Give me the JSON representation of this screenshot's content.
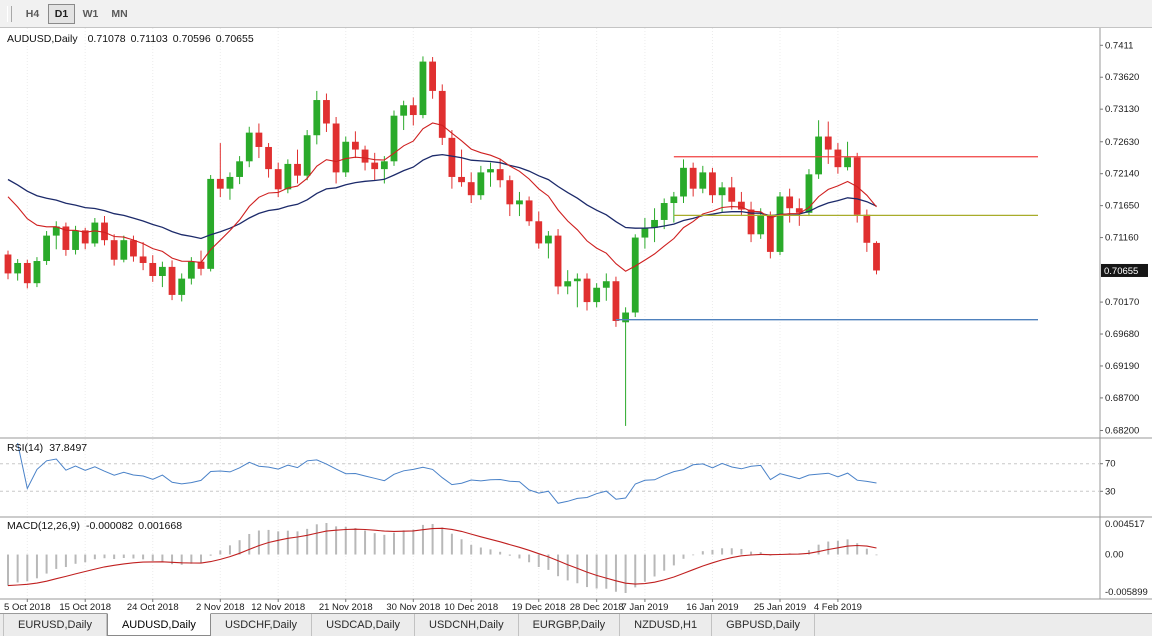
{
  "toolbar": {
    "timeframes": [
      {
        "label": "H4",
        "active": false
      },
      {
        "label": "D1",
        "active": true
      },
      {
        "label": "W1",
        "active": false
      },
      {
        "label": "MN",
        "active": false
      }
    ]
  },
  "main_header": {
    "symbol_period": "AUDUSD,Daily",
    "open": "0.71078",
    "high": "0.71103",
    "low": "0.70596",
    "close": "0.70655"
  },
  "rsi_header": {
    "label": "RSI(14)",
    "value": "37.8497"
  },
  "macd_header": {
    "label": "MACD(12,26,9)",
    "value": "-0.000082",
    "signal_value": "0.001668"
  },
  "chart_data": {
    "type": "candlestick",
    "symbol": "AUDUSD",
    "timeframe": "Daily",
    "colors": {
      "up": "#2aaa2a",
      "down": "#e03030",
      "ma_fast": "#cf2020",
      "ma_slow": "#1c2a6a",
      "rsi": "#4a82c8",
      "macd_signal": "#c02020",
      "macd_hist": "#b8b8b8"
    },
    "price_axis": {
      "labels": [
        "0.7411",
        "0.73620",
        "0.73130",
        "0.72630",
        "0.72140",
        "0.71650",
        "0.71160",
        "0.70170",
        "0.69680",
        "0.69190",
        "0.68700",
        "0.68200"
      ],
      "view_max": 0.7436,
      "view_min": 0.681
    },
    "current_price": "0.70655",
    "time_axis": [
      {
        "label": "5 Oct 2018",
        "i": 2
      },
      {
        "label": "15 Oct 2018",
        "i": 8
      },
      {
        "label": "24 Oct 2018",
        "i": 15
      },
      {
        "label": "2 Nov 2018",
        "i": 22
      },
      {
        "label": "12 Nov 2018",
        "i": 28
      },
      {
        "label": "21 Nov 2018",
        "i": 35
      },
      {
        "label": "30 Nov 2018",
        "i": 42
      },
      {
        "label": "10 Dec 2018",
        "i": 48
      },
      {
        "label": "19 Dec 2018",
        "i": 55
      },
      {
        "label": "28 Dec 2018",
        "i": 61
      },
      {
        "label": "7 Jan 2019",
        "i": 66
      },
      {
        "label": "16 Jan 2019",
        "i": 73
      },
      {
        "label": "25 Jan 2019",
        "i": 80
      },
      {
        "label": "4 Feb 2019",
        "i": 86
      }
    ],
    "ohlc_order": [
      "open",
      "high",
      "low",
      "close"
    ],
    "candles": [
      [
        0.709,
        0.7096,
        0.7052,
        0.7061
      ],
      [
        0.7061,
        0.7083,
        0.705,
        0.7077
      ],
      [
        0.7077,
        0.7082,
        0.7038,
        0.7046
      ],
      [
        0.7046,
        0.7086,
        0.704,
        0.708
      ],
      [
        0.708,
        0.7126,
        0.7074,
        0.7119
      ],
      [
        0.7119,
        0.7141,
        0.7098,
        0.7133
      ],
      [
        0.7133,
        0.7139,
        0.7088,
        0.7097
      ],
      [
        0.7097,
        0.7134,
        0.709,
        0.7127
      ],
      [
        0.7127,
        0.7131,
        0.7098,
        0.7107
      ],
      [
        0.7107,
        0.7146,
        0.7102,
        0.7139
      ],
      [
        0.7139,
        0.7149,
        0.7104,
        0.7112
      ],
      [
        0.7112,
        0.7121,
        0.7073,
        0.7082
      ],
      [
        0.7082,
        0.7119,
        0.7078,
        0.7112
      ],
      [
        0.7112,
        0.7119,
        0.7079,
        0.7087
      ],
      [
        0.7087,
        0.7109,
        0.7066,
        0.7077
      ],
      [
        0.7077,
        0.7089,
        0.7048,
        0.7057
      ],
      [
        0.7057,
        0.7079,
        0.704,
        0.7071
      ],
      [
        0.7071,
        0.7081,
        0.702,
        0.7028
      ],
      [
        0.7028,
        0.7061,
        0.7018,
        0.7053
      ],
      [
        0.7053,
        0.7086,
        0.7044,
        0.7079
      ],
      [
        0.7079,
        0.7096,
        0.7058,
        0.7068
      ],
      [
        0.7068,
        0.7212,
        0.7064,
        0.7206
      ],
      [
        0.7206,
        0.7261,
        0.7178,
        0.7191
      ],
      [
        0.7191,
        0.7216,
        0.7174,
        0.7209
      ],
      [
        0.7209,
        0.7241,
        0.7198,
        0.7233
      ],
      [
        0.7233,
        0.7286,
        0.7224,
        0.7277
      ],
      [
        0.7277,
        0.7291,
        0.7238,
        0.7255
      ],
      [
        0.7255,
        0.7261,
        0.7208,
        0.7221
      ],
      [
        0.7221,
        0.7231,
        0.7178,
        0.719
      ],
      [
        0.719,
        0.7236,
        0.7184,
        0.7229
      ],
      [
        0.7229,
        0.7251,
        0.7199,
        0.7211
      ],
      [
        0.7211,
        0.7281,
        0.7204,
        0.7273
      ],
      [
        0.7273,
        0.7341,
        0.7259,
        0.7327
      ],
      [
        0.7327,
        0.7337,
        0.7278,
        0.7291
      ],
      [
        0.7291,
        0.7301,
        0.7199,
        0.7216
      ],
      [
        0.7216,
        0.7271,
        0.7209,
        0.7263
      ],
      [
        0.7263,
        0.7279,
        0.7238,
        0.7251
      ],
      [
        0.7251,
        0.7257,
        0.7219,
        0.7231
      ],
      [
        0.7231,
        0.7246,
        0.7204,
        0.7221
      ],
      [
        0.7221,
        0.7241,
        0.7199,
        0.7233
      ],
      [
        0.7233,
        0.7311,
        0.7226,
        0.7303
      ],
      [
        0.7303,
        0.7326,
        0.7281,
        0.7319
      ],
      [
        0.7319,
        0.7331,
        0.7288,
        0.7304
      ],
      [
        0.7304,
        0.7394,
        0.7299,
        0.7386
      ],
      [
        0.7386,
        0.7393,
        0.7329,
        0.7341
      ],
      [
        0.7341,
        0.7351,
        0.7258,
        0.7269
      ],
      [
        0.7269,
        0.7281,
        0.7191,
        0.7209
      ],
      [
        0.7209,
        0.7251,
        0.7194,
        0.7201
      ],
      [
        0.7201,
        0.7216,
        0.7169,
        0.7181
      ],
      [
        0.7181,
        0.7226,
        0.7174,
        0.7216
      ],
      [
        0.7216,
        0.7231,
        0.7194,
        0.7221
      ],
      [
        0.7221,
        0.7236,
        0.7193,
        0.7204
      ],
      [
        0.7204,
        0.7211,
        0.7149,
        0.7167
      ],
      [
        0.7167,
        0.7186,
        0.7149,
        0.7173
      ],
      [
        0.7173,
        0.7179,
        0.7134,
        0.7141
      ],
      [
        0.7141,
        0.7156,
        0.7099,
        0.7107
      ],
      [
        0.7107,
        0.7126,
        0.7084,
        0.7119
      ],
      [
        0.7119,
        0.7129,
        0.7029,
        0.7041
      ],
      [
        0.7041,
        0.7066,
        0.7029,
        0.7049
      ],
      [
        0.7049,
        0.7061,
        0.7009,
        0.7053
      ],
      [
        0.7053,
        0.7061,
        0.7004,
        0.7017
      ],
      [
        0.7017,
        0.7046,
        0.7009,
        0.7039
      ],
      [
        0.7039,
        0.7061,
        0.7019,
        0.7049
      ],
      [
        0.7049,
        0.7056,
        0.6979,
        0.6988
      ],
      [
        0.6986,
        0.7009,
        0.6827,
        0.7001
      ],
      [
        0.7001,
        0.7121,
        0.6994,
        0.7116
      ],
      [
        0.7116,
        0.7146,
        0.7099,
        0.7131
      ],
      [
        0.7131,
        0.7161,
        0.7109,
        0.7143
      ],
      [
        0.7143,
        0.7176,
        0.7129,
        0.7169
      ],
      [
        0.7169,
        0.7186,
        0.7139,
        0.7179
      ],
      [
        0.7179,
        0.7236,
        0.7169,
        0.7223
      ],
      [
        0.7223,
        0.7231,
        0.7179,
        0.7191
      ],
      [
        0.7191,
        0.7226,
        0.7184,
        0.7216
      ],
      [
        0.7216,
        0.7223,
        0.7169,
        0.7181
      ],
      [
        0.7181,
        0.7201,
        0.7154,
        0.7193
      ],
      [
        0.7193,
        0.7209,
        0.7159,
        0.7171
      ],
      [
        0.7171,
        0.7186,
        0.7149,
        0.7159
      ],
      [
        0.7159,
        0.7171,
        0.7109,
        0.7121
      ],
      [
        0.7121,
        0.7161,
        0.7114,
        0.7151
      ],
      [
        0.7151,
        0.7156,
        0.7084,
        0.7094
      ],
      [
        0.7094,
        0.7186,
        0.7089,
        0.7179
      ],
      [
        0.7179,
        0.7191,
        0.7139,
        0.7161
      ],
      [
        0.7161,
        0.7176,
        0.7134,
        0.7154
      ],
      [
        0.7154,
        0.7221,
        0.7149,
        0.7213
      ],
      [
        0.7213,
        0.7296,
        0.7206,
        0.7271
      ],
      [
        0.7271,
        0.7294,
        0.7229,
        0.7251
      ],
      [
        0.7251,
        0.7261,
        0.7214,
        0.7224
      ],
      [
        0.7224,
        0.7263,
        0.7219,
        0.7239
      ],
      [
        0.7239,
        0.7246,
        0.7139,
        0.7151
      ],
      [
        0.7151,
        0.7159,
        0.7094,
        0.7108
      ],
      [
        0.71078,
        0.71103,
        0.70596,
        0.70655
      ]
    ],
    "moving_averages": [
      {
        "name": "fast",
        "period": 12,
        "seed": 0.72
      },
      {
        "name": "slow",
        "period": 30,
        "seed": 0.7215
      }
    ],
    "horizontal_lines": [
      {
        "name": "resistance",
        "price": 0.724,
        "from_i": 69,
        "color": "#f04040"
      },
      {
        "name": "median",
        "price": 0.715,
        "from_i": 69,
        "color": "#a8ac2a"
      },
      {
        "name": "support",
        "price": 0.699,
        "from_i": 63,
        "color": "#4f81bd"
      }
    ],
    "rsi": {
      "period": 14,
      "value": 37.8497,
      "levels": [
        70,
        30
      ]
    },
    "macd": {
      "fast": 12,
      "slow": 26,
      "signal": 9,
      "value": -8.2e-05,
      "signal_value": 0.001668,
      "axis_labels": [
        "0.004517",
        "0.00",
        "-0.005899"
      ]
    }
  },
  "tabs": {
    "items": [
      {
        "label": "EURUSD,Daily",
        "active": false
      },
      {
        "label": "AUDUSD,Daily",
        "active": true
      },
      {
        "label": "USDCHF,Daily",
        "active": false
      },
      {
        "label": "USDCAD,Daily",
        "active": false
      },
      {
        "label": "USDCNH,Daily",
        "active": false
      },
      {
        "label": "EURGBP,Daily",
        "active": false
      },
      {
        "label": "NZDUSD,H1",
        "active": false
      },
      {
        "label": "GBPUSD,Daily",
        "active": false
      }
    ]
  }
}
